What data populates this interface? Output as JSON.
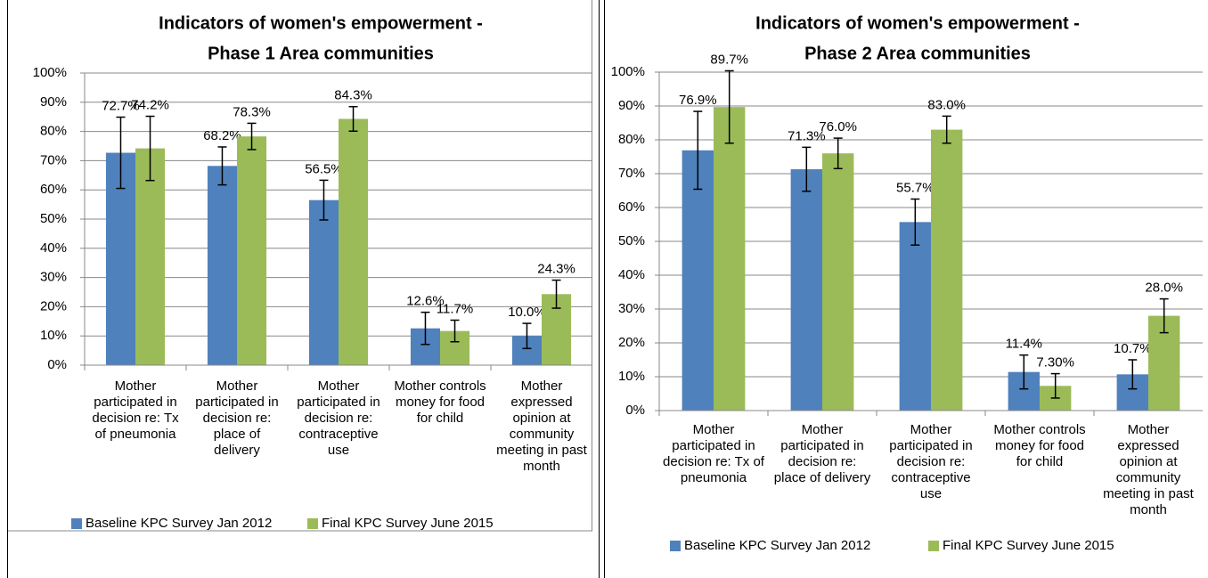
{
  "chart_data": [
    {
      "type": "bar",
      "title": [
        "Indicators of women's empowerment -",
        "Phase 1 Area communities"
      ],
      "categories": [
        "Mother participated in decision re: Tx of pneumonia",
        "Mother participated in decision re: place of delivery",
        "Mother participated in decision re: contraceptive use",
        "Mother controls money for food for child",
        "Mother expressed opinion at community meeting in past month"
      ],
      "series": [
        {
          "name": "Baseline KPC Survey Jan 2012",
          "color": "#4f81bd",
          "values": [
            72.7,
            68.2,
            56.5,
            12.6,
            10.0
          ],
          "value_labels": [
            "72.7%",
            "68.2%",
            "56.5%",
            "12.6%",
            "10.0%"
          ],
          "errors": [
            12.2,
            6.5,
            6.8,
            5.5,
            4.3
          ]
        },
        {
          "name": "Final KPC Survey June 2015",
          "color": "#9bbb59",
          "values": [
            74.2,
            78.3,
            84.3,
            11.7,
            24.3
          ],
          "value_labels": [
            "74.2%",
            "78.3%",
            "84.3%",
            "11.7%",
            "24.3%"
          ],
          "errors": [
            11,
            4.5,
            4.2,
            3.7,
            4.8
          ]
        }
      ],
      "ylim": [
        0,
        100
      ],
      "yticks": [
        {
          "value": 0,
          "label": "0%"
        },
        {
          "value": 10,
          "label": "10%"
        },
        {
          "value": 20,
          "label": "20%"
        },
        {
          "value": 30,
          "label": "30%"
        },
        {
          "value": 40,
          "label": "40%"
        },
        {
          "value": 50,
          "label": "50%"
        },
        {
          "value": 60,
          "label": "60%"
        },
        {
          "value": 70,
          "label": "70%"
        },
        {
          "value": 80,
          "label": "80%"
        },
        {
          "value": 90,
          "label": "90%"
        },
        {
          "value": 100,
          "label": "100%"
        }
      ],
      "grid": true,
      "legend": "bottom"
    },
    {
      "type": "bar",
      "title": [
        "Indicators of women's empowerment -",
        "Phase 2 Area communities"
      ],
      "categories": [
        "Mother participated in decision re: Tx of pneumonia",
        "Mother participated in decision re: place of delivery",
        "Mother participated in decision re: contraceptive use",
        "Mother controls money for food for child",
        "Mother expressed opinion at community meeting in past month"
      ],
      "series": [
        {
          "name": "Baseline KPC Survey Jan 2012",
          "color": "#4f81bd",
          "values": [
            76.9,
            71.3,
            55.7,
            11.4,
            10.7
          ],
          "value_labels": [
            "76.9%",
            "71.3%",
            "55.7%",
            "11.4%",
            "10.7%"
          ],
          "errors": [
            11.5,
            6.5,
            6.8,
            5,
            4.3
          ]
        },
        {
          "name": "Final KPC Survey June 2015",
          "color": "#9bbb59",
          "values": [
            89.7,
            76.0,
            83.0,
            7.3,
            28.0
          ],
          "value_labels": [
            "89.7%",
            "76.0%",
            "83.0%",
            "7.30%",
            "28.0%"
          ],
          "errors": [
            10.7,
            4.5,
            4,
            3.6,
            5
          ]
        }
      ],
      "ylim": [
        0,
        100
      ],
      "yticks": [
        {
          "value": 0,
          "label": "0%"
        },
        {
          "value": 10,
          "label": "10%"
        },
        {
          "value": 20,
          "label": "20%"
        },
        {
          "value": 30,
          "label": "30%"
        },
        {
          "value": 40,
          "label": "40%"
        },
        {
          "value": 50,
          "label": "50%"
        },
        {
          "value": 60,
          "label": "60%"
        },
        {
          "value": 70,
          "label": "70%"
        },
        {
          "value": 80,
          "label": "80%"
        },
        {
          "value": 90,
          "label": "90%"
        },
        {
          "value": 100,
          "label": "100%"
        }
      ],
      "grid": true,
      "legend": "bottom"
    }
  ]
}
